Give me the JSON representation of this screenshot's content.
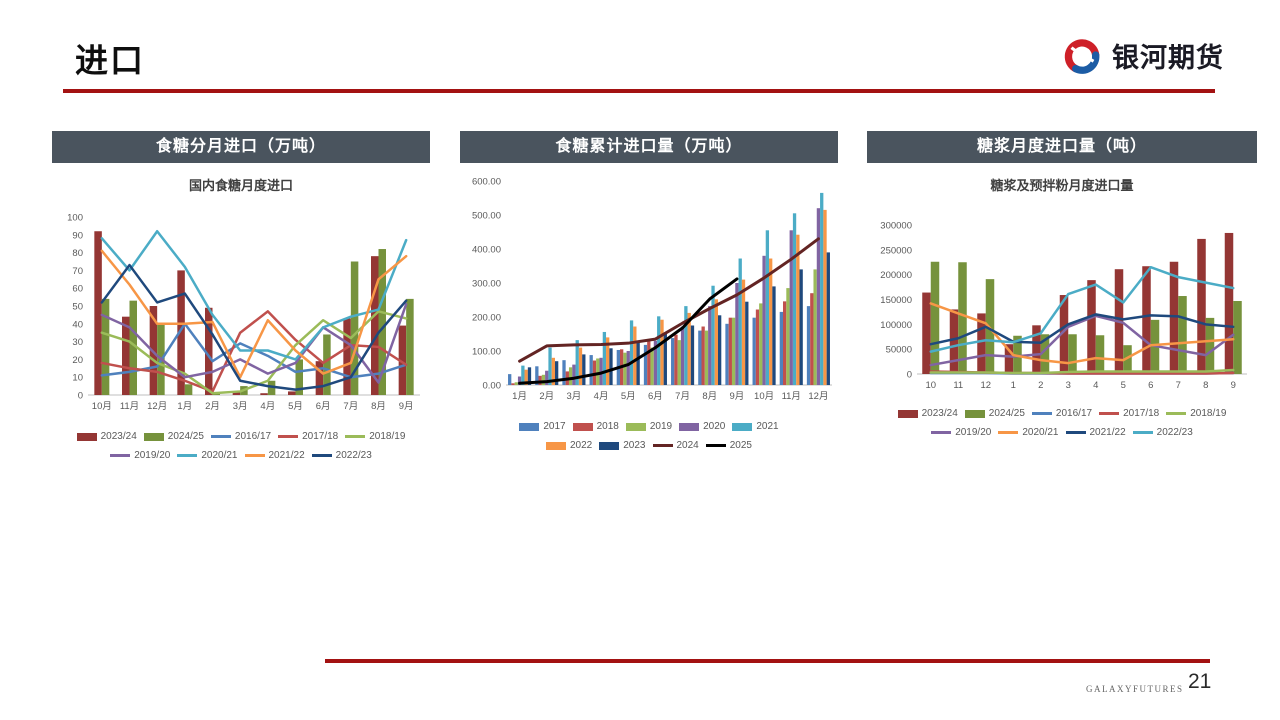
{
  "page": {
    "title": "进口",
    "page_number": "21",
    "footer_brand": "GALAXYFUTURES"
  },
  "logo": {
    "text": "银河期货"
  },
  "theme": {
    "accent": "#A31212",
    "header_bg": "#4A545E",
    "axis_text": "#595959"
  },
  "chart_data": [
    {
      "type": "bar",
      "title": "食糖分月进口（万吨）",
      "subtitle": "国内食糖月度进口",
      "categories": [
        "10月",
        "11月",
        "12月",
        "1月",
        "2月",
        "3月",
        "4月",
        "5月",
        "6月",
        "7月",
        "8月",
        "9月"
      ],
      "ylim": [
        0,
        100
      ],
      "ytick_labels": [
        "0",
        "10",
        "20",
        "30",
        "40",
        "50",
        "60",
        "70",
        "80",
        "90",
        "100"
      ],
      "grid": false,
      "legend_position": "bottom",
      "bar_series": [
        {
          "name": "2023/24",
          "color": "#943634",
          "values": [
            92,
            44,
            50,
            70,
            49,
            2,
            1,
            2,
            19,
            43,
            78,
            39
          ]
        },
        {
          "name": "2024/25",
          "color": "#76923C",
          "values": [
            54,
            53,
            40,
            6,
            1,
            5,
            8,
            20,
            34,
            75,
            82,
            54
          ]
        }
      ],
      "line_series": [
        {
          "name": "2016/17",
          "color": "#4F81BD",
          "values": [
            11,
            13,
            16,
            40,
            19,
            29,
            22,
            13,
            15,
            10,
            12,
            17
          ]
        },
        {
          "name": "2017/18",
          "color": "#C0504D",
          "values": [
            18,
            15,
            13,
            8,
            2,
            35,
            47,
            31,
            18,
            28,
            27,
            17
          ]
        },
        {
          "name": "2018/19",
          "color": "#9BBB59",
          "values": [
            35,
            30,
            18,
            12,
            1,
            2,
            8,
            28,
            42,
            32,
            47,
            43
          ]
        },
        {
          "name": "2019/20",
          "color": "#8064A2",
          "values": [
            45,
            38,
            22,
            10,
            13,
            20,
            12,
            18,
            38,
            28,
            7,
            51
          ]
        },
        {
          "name": "2020/21",
          "color": "#4BACC6",
          "values": [
            88,
            70,
            92,
            72,
            45,
            25,
            25,
            20,
            38,
            44,
            48,
            87
          ]
        },
        {
          "name": "2021/22",
          "color": "#F79646",
          "values": [
            81,
            62,
            40,
            40,
            41,
            10,
            42,
            25,
            12,
            18,
            65,
            78
          ]
        },
        {
          "name": "2022/23",
          "color": "#1F497D",
          "values": [
            52,
            73,
            52,
            57,
            34,
            8,
            5,
            3,
            5,
            10,
            35,
            53
          ]
        }
      ]
    },
    {
      "type": "bar",
      "title": "食糖累计进口量（万吨）",
      "subtitle": "",
      "categories": [
        "1月",
        "2月",
        "3月",
        "4月",
        "5月",
        "6月",
        "7月",
        "8月",
        "9月",
        "10月",
        "11月",
        "12月"
      ],
      "ylim": [
        0,
        600
      ],
      "ytick_labels": [
        "0.00",
        "100.00",
        "200.00",
        "300.00",
        "400.00",
        "500.00",
        "600.00"
      ],
      "grid": false,
      "legend_position": "bottom",
      "bar_series": [
        {
          "name": "2017",
          "color": "#4F81BD",
          "values": [
            32,
            55,
            73,
            88,
            103,
            118,
            138,
            160,
            180,
            198,
            215,
            232
          ]
        },
        {
          "name": "2018",
          "color": "#C0504D",
          "values": [
            5,
            27,
            40,
            72,
            105,
            128,
            148,
            172,
            198,
            222,
            246,
            270
          ]
        },
        {
          "name": "2019",
          "color": "#9BBB59",
          "values": [
            8,
            30,
            52,
            78,
            95,
            110,
            132,
            160,
            198,
            240,
            285,
            340
          ]
        },
        {
          "name": "2020",
          "color": "#8064A2",
          "values": [
            25,
            42,
            60,
            80,
            100,
            130,
            172,
            232,
            300,
            380,
            455,
            520
          ]
        },
        {
          "name": "2021",
          "color": "#4BACC6",
          "values": [
            57,
            110,
            132,
            156,
            190,
            202,
            232,
            292,
            372,
            455,
            505,
            565
          ]
        },
        {
          "name": "2022",
          "color": "#F79646",
          "values": [
            45,
            80,
            110,
            140,
            172,
            192,
            212,
            252,
            310,
            372,
            442,
            515
          ]
        },
        {
          "name": "2023",
          "color": "#1F497D",
          "values": [
            52,
            70,
            90,
            108,
            128,
            150,
            175,
            205,
            245,
            290,
            340,
            390
          ]
        }
      ],
      "line_series": [
        {
          "name": "2024",
          "color": "#632423",
          "width": 3,
          "values": [
            70,
            115,
            118,
            119,
            123,
            135,
            182,
            225,
            265,
            315,
            370,
            430
          ]
        },
        {
          "name": "2025",
          "color": "#000000",
          "width": 3,
          "values": [
            5,
            10,
            20,
            35,
            60,
            110,
            168,
            253,
            312,
            null,
            null,
            null
          ]
        }
      ]
    },
    {
      "type": "bar",
      "title": "糖浆月度进口量（吨）",
      "subtitle": "糖浆及预拌粉月度进口量",
      "categories": [
        "10",
        "11",
        "12",
        "1",
        "2",
        "3",
        "4",
        "5",
        "6",
        "7",
        "8",
        "9"
      ],
      "ylim": [
        0,
        300000
      ],
      "ytick_labels": [
        "0",
        "50000",
        "100000",
        "150000",
        "200000",
        "250000",
        "300000"
      ],
      "grid": false,
      "legend_position": "bottom",
      "bar_series": [
        {
          "name": "2023/24",
          "color": "#943634",
          "values": [
            164000,
            130000,
            122000,
            60000,
            98000,
            159000,
            189000,
            211000,
            217000,
            226000,
            272000,
            284000
          ]
        },
        {
          "name": "2024/25",
          "color": "#76923C",
          "values": [
            226000,
            225000,
            191000,
            77000,
            80000,
            80000,
            78000,
            58000,
            109000,
            157000,
            113000,
            147000
          ]
        }
      ],
      "line_series": [
        {
          "name": "2016/17",
          "color": "#4F81BD",
          "values": [
            2000,
            2000,
            2000,
            1000,
            1000,
            1000,
            1000,
            1000,
            1000,
            1000,
            1000,
            2000
          ]
        },
        {
          "name": "2017/18",
          "color": "#C0504D",
          "values": [
            5000,
            4000,
            3000,
            2000,
            2000,
            1000,
            1000,
            1000,
            1000,
            1000,
            1000,
            2000
          ]
        },
        {
          "name": "2018/19",
          "color": "#9BBB59",
          "values": [
            3000,
            3000,
            3000,
            2000,
            2000,
            4000,
            5000,
            5000,
            5000,
            5000,
            5000,
            8000
          ]
        },
        {
          "name": "2019/20",
          "color": "#8064A2",
          "values": [
            18000,
            28000,
            38000,
            35000,
            40000,
            95000,
            117000,
            103000,
            58000,
            48000,
            38000,
            79000
          ]
        },
        {
          "name": "2020/21",
          "color": "#F79646",
          "values": [
            142000,
            122000,
            102000,
            38000,
            28000,
            22000,
            32000,
            28000,
            58000,
            62000,
            66000,
            70000
          ]
        },
        {
          "name": "2021/22",
          "color": "#1F497D",
          "values": [
            60000,
            72000,
            95000,
            65000,
            63000,
            100000,
            120000,
            110000,
            118000,
            116000,
            100000,
            95000
          ]
        },
        {
          "name": "2022/23",
          "color": "#4BACC6",
          "values": [
            45000,
            58000,
            68000,
            64000,
            82000,
            161000,
            180000,
            144000,
            215000,
            195000,
            184000,
            173000
          ]
        }
      ]
    }
  ]
}
